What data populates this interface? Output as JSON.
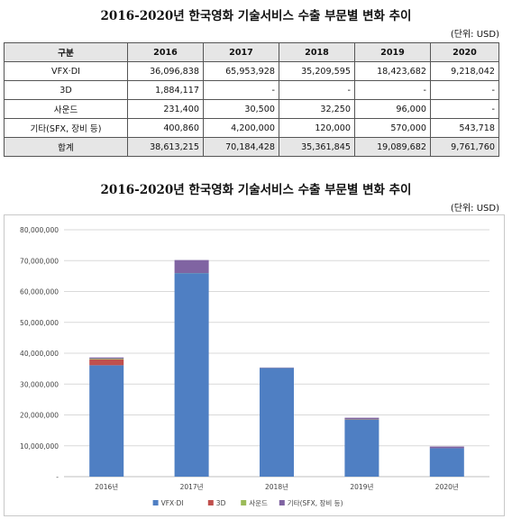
{
  "table": {
    "title": "2016-2020년 한국영화 기술서비스 수출 부문별 변화 추이",
    "unit": "(단위: USD)",
    "header": [
      "구분",
      "2016",
      "2017",
      "2018",
      "2019",
      "2020"
    ],
    "rows": [
      {
        "label": "VFX·DI",
        "values": [
          "36,096,838",
          "65,953,928",
          "35,209,595",
          "18,423,682",
          "9,218,042"
        ]
      },
      {
        "label": "3D",
        "values": [
          "1,884,117",
          "-",
          "-",
          "-",
          "-"
        ]
      },
      {
        "label": "사운드",
        "values": [
          "231,400",
          "30,500",
          "32,250",
          "96,000",
          "-"
        ]
      },
      {
        "label": "기타(SFX, 장비 등)",
        "values": [
          "400,860",
          "4,200,000",
          "120,000",
          "570,000",
          "543,718"
        ]
      }
    ],
    "total": {
      "label": "합계",
      "values": [
        "38,613,215",
        "70,184,428",
        "35,361,845",
        "19,089,682",
        "9,761,760"
      ]
    }
  },
  "chart_data": {
    "type": "bar",
    "stacked": true,
    "title": "2016-2020년 한국영화 기술서비스 수출 부문별 변화 추이",
    "unit": "(단위: USD)",
    "categories": [
      "2016년",
      "2017년",
      "2018년",
      "2019년",
      "2020년"
    ],
    "series": [
      {
        "name": "VFX·DI",
        "color": "#4f7fc3",
        "values": [
          36096838,
          65953928,
          35209595,
          18423682,
          9218042
        ]
      },
      {
        "name": "3D",
        "color": "#c0504d",
        "values": [
          1884117,
          0,
          0,
          0,
          0
        ]
      },
      {
        "name": "사운드",
        "color": "#9bbb59",
        "values": [
          231400,
          30500,
          32250,
          96000,
          0
        ]
      },
      {
        "name": "기타(SFX, 장비 등)",
        "color": "#8064a2",
        "values": [
          400860,
          4200000,
          120000,
          570000,
          543718
        ]
      }
    ],
    "ylim": [
      0,
      80000000
    ],
    "yticks": [
      "-",
      "10,000,000",
      "20,000,000",
      "30,000,000",
      "40,000,000",
      "50,000,000",
      "60,000,000",
      "70,000,000",
      "80,000,000"
    ],
    "grid": true,
    "legend": "bottom"
  }
}
